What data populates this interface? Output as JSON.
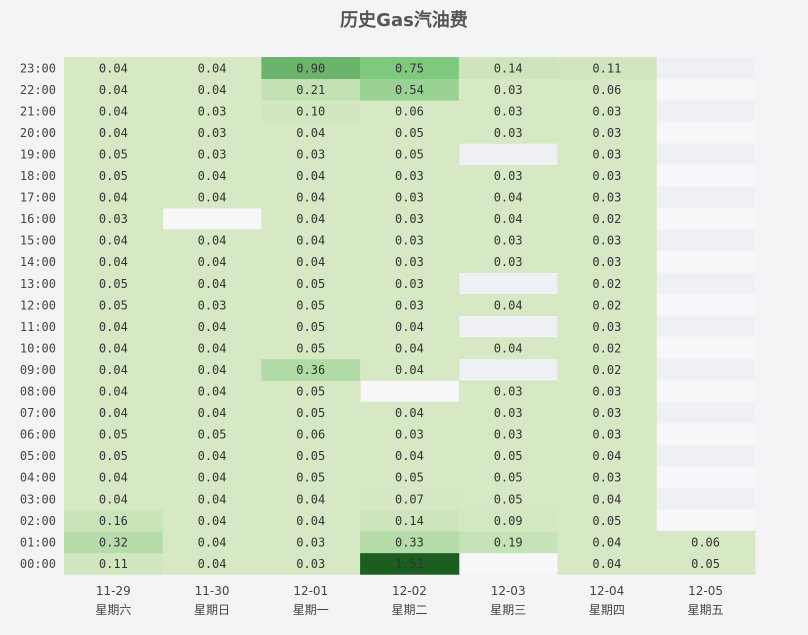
{
  "chart_data": {
    "type": "heatmap",
    "title": "历史Gas汽油费",
    "x": [
      {
        "date": "11-29",
        "weekday": "星期六"
      },
      {
        "date": "11-30",
        "weekday": "星期日"
      },
      {
        "date": "12-01",
        "weekday": "星期一"
      },
      {
        "date": "12-02",
        "weekday": "星期二"
      },
      {
        "date": "12-03",
        "weekday": "星期三"
      },
      {
        "date": "12-04",
        "weekday": "星期四"
      },
      {
        "date": "12-05",
        "weekday": "星期五"
      }
    ],
    "y": [
      "00:00",
      "01:00",
      "02:00",
      "03:00",
      "04:00",
      "05:00",
      "06:00",
      "07:00",
      "08:00",
      "09:00",
      "10:00",
      "11:00",
      "12:00",
      "13:00",
      "14:00",
      "15:00",
      "16:00",
      "17:00",
      "18:00",
      "19:00",
      "20:00",
      "21:00",
      "22:00",
      "23:00"
    ],
    "values": [
      [
        0.11,
        0.32,
        0.16,
        0.04,
        0.04,
        0.05,
        0.05,
        0.04,
        0.04,
        0.04,
        0.04,
        0.04,
        0.05,
        0.05,
        0.04,
        0.04,
        0.03,
        0.04,
        0.05,
        0.05,
        0.04,
        0.04,
        0.04,
        0.04
      ],
      [
        0.04,
        0.04,
        0.04,
        0.04,
        0.04,
        0.04,
        0.05,
        0.04,
        0.04,
        0.04,
        0.04,
        0.04,
        0.03,
        0.04,
        0.04,
        0.04,
        null,
        0.04,
        0.04,
        0.03,
        0.03,
        0.03,
        0.04,
        0.04
      ],
      [
        0.03,
        0.03,
        0.04,
        0.04,
        0.05,
        0.05,
        0.06,
        0.05,
        0.05,
        0.36,
        0.05,
        0.05,
        0.05,
        0.05,
        0.04,
        0.04,
        0.04,
        0.04,
        0.04,
        0.03,
        0.04,
        0.1,
        0.21,
        0.9
      ],
      [
        1.51,
        0.33,
        0.14,
        0.07,
        0.05,
        0.04,
        0.03,
        0.04,
        null,
        0.04,
        0.04,
        0.04,
        0.03,
        0.03,
        0.03,
        0.03,
        0.03,
        0.03,
        0.03,
        0.05,
        0.05,
        0.06,
        0.54,
        0.75
      ],
      [
        null,
        0.19,
        0.09,
        0.05,
        0.05,
        0.05,
        0.03,
        0.03,
        0.03,
        null,
        0.04,
        null,
        0.04,
        null,
        0.03,
        0.03,
        0.04,
        0.04,
        0.03,
        null,
        0.03,
        0.03,
        0.03,
        0.14
      ],
      [
        0.04,
        0.04,
        0.05,
        0.04,
        0.03,
        0.04,
        0.03,
        0.03,
        0.03,
        0.02,
        0.02,
        0.03,
        0.02,
        0.02,
        0.03,
        0.03,
        0.02,
        0.03,
        0.03,
        0.03,
        0.03,
        0.03,
        0.06,
        0.11
      ],
      [
        0.05,
        0.06,
        null,
        null,
        null,
        null,
        null,
        null,
        null,
        null,
        null,
        null,
        null,
        null,
        null,
        null,
        null,
        null,
        null,
        null,
        null,
        null,
        null,
        null
      ]
    ],
    "colors": {
      "background": "#f4f4f7",
      "empty_even": "#f7f7f9",
      "empty_odd": "#eef0f6",
      "scale_low": "#d7e8c4",
      "scale_mid": "#7fc97f",
      "scale_high": "#1b5e20"
    }
  }
}
